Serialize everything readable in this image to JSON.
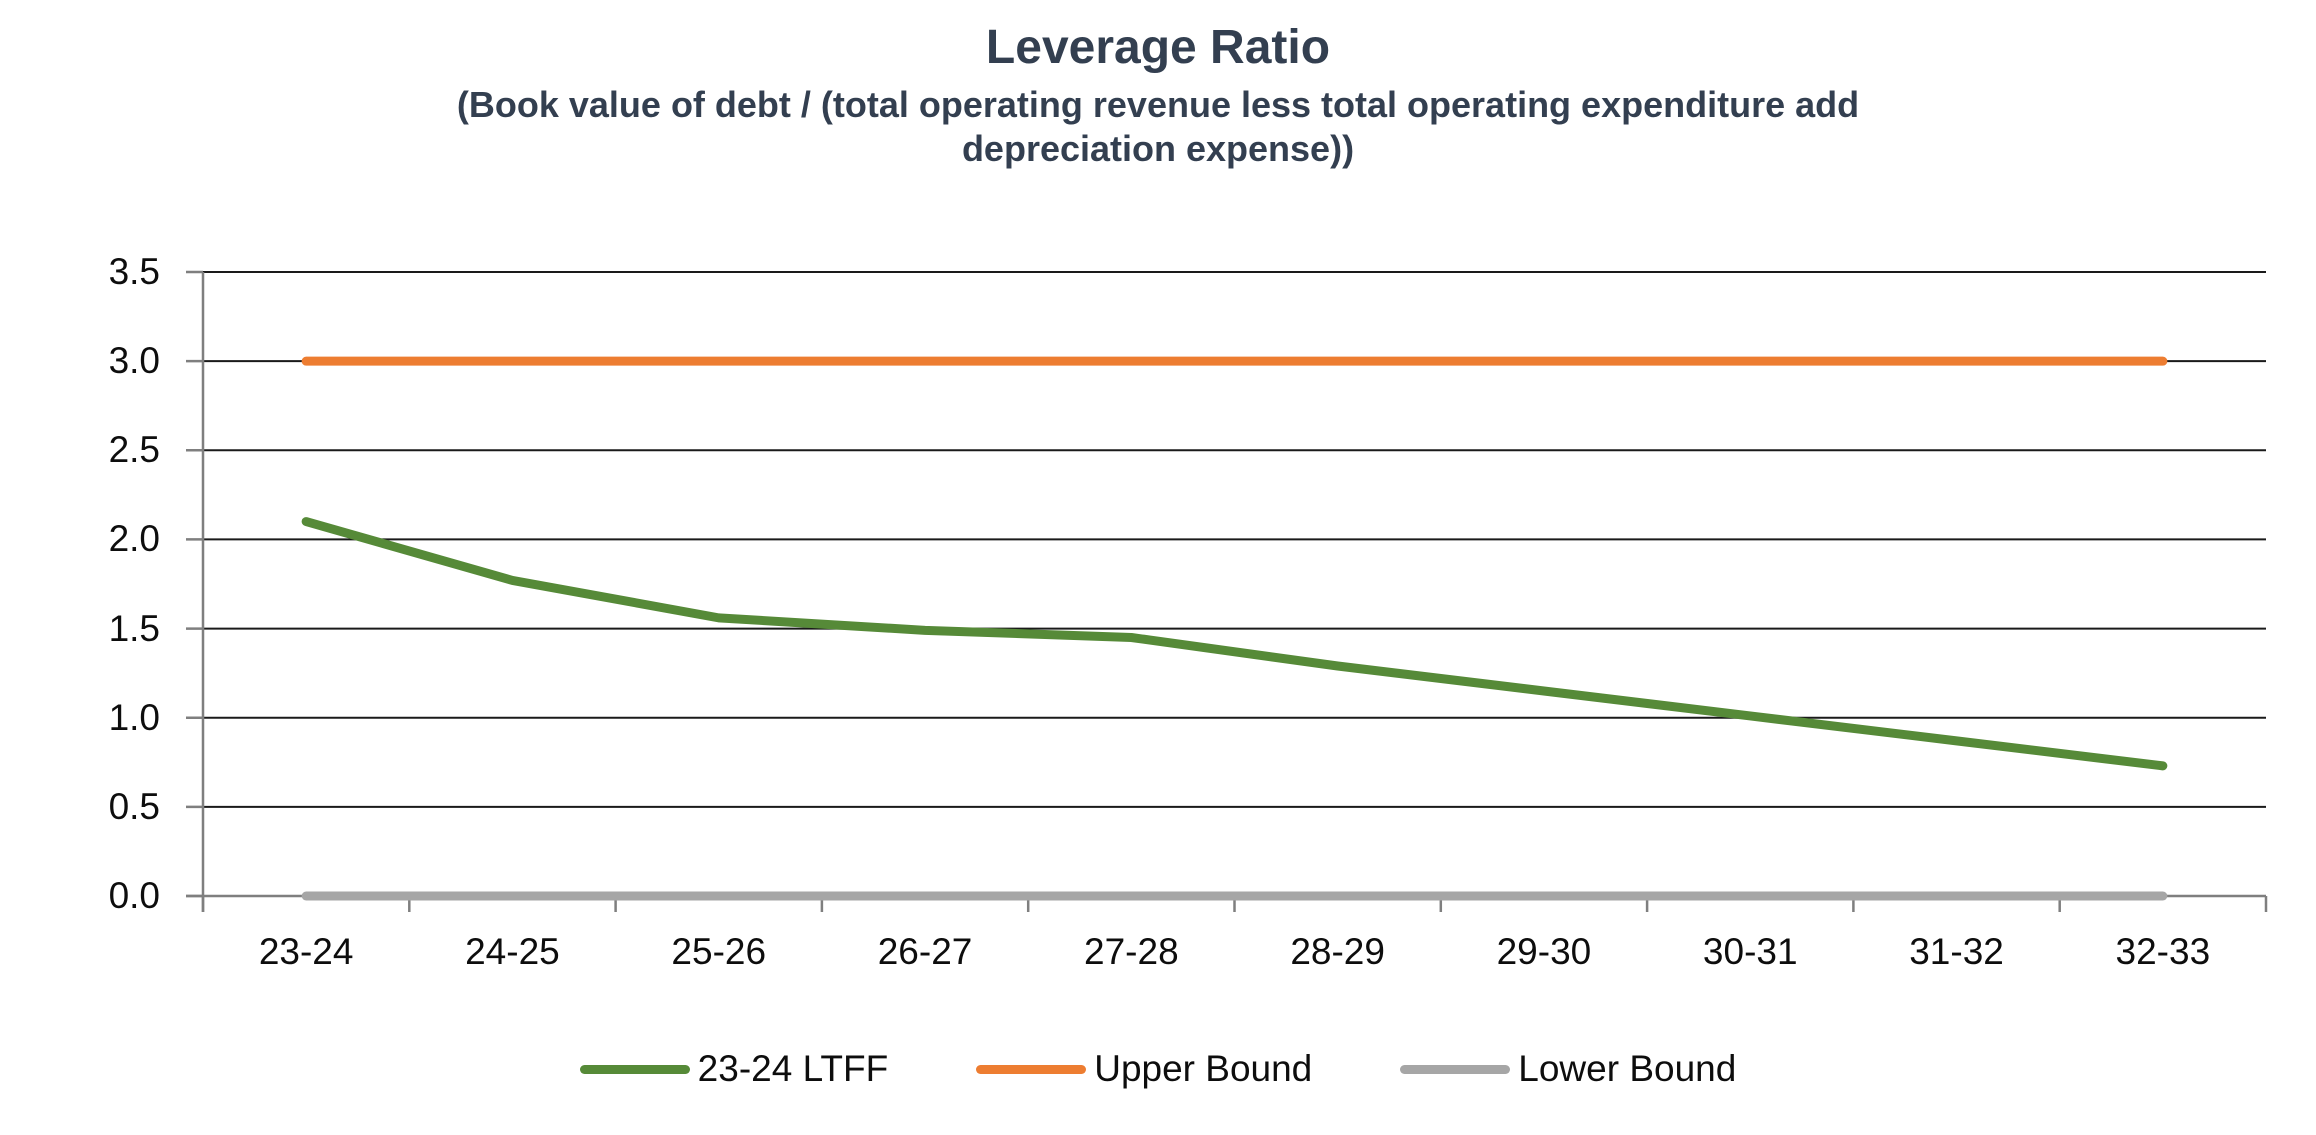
{
  "chart_data": {
    "type": "line",
    "title": "Leverage Ratio",
    "subtitle": "(Book value of debt / (total operating revenue less total operating expenditure add depreciation expense))",
    "subtitle_lines": [
      "(Book value of debt / (total operating revenue less total operating expenditure add",
      "depreciation expense))"
    ],
    "categories": [
      "23-24",
      "24-25",
      "25-26",
      "26-27",
      "27-28",
      "28-29",
      "29-30",
      "30-31",
      "31-32",
      "32-33"
    ],
    "series": [
      {
        "name": "23-24 LTFF",
        "color": "#568A38",
        "values": [
          2.1,
          1.77,
          1.56,
          1.49,
          1.45,
          1.29,
          1.15,
          1.01,
          0.87,
          0.73
        ]
      },
      {
        "name": "Upper Bound",
        "color": "#ED7D31",
        "values": [
          3.0,
          3.0,
          3.0,
          3.0,
          3.0,
          3.0,
          3.0,
          3.0,
          3.0,
          3.0
        ]
      },
      {
        "name": "Lower Bound",
        "color": "#A6A6A6",
        "values": [
          0.0,
          0.0,
          0.0,
          0.0,
          0.0,
          0.0,
          0.0,
          0.0,
          0.0,
          0.0
        ]
      }
    ],
    "y_axis": {
      "min": 0,
      "max": 3.5,
      "step": 0.5,
      "tick_labels": [
        "0.0",
        "0.5",
        "1.0",
        "1.5",
        "2.0",
        "2.5",
        "3.0",
        "3.5"
      ]
    },
    "x_axis": {
      "label": ""
    },
    "legend_position": "bottom",
    "grid": true,
    "colors": {
      "title_text": "#333F50",
      "axis_line": "#7F7F7F",
      "gridline": "#1A1A1A",
      "tick_text": "#0d0d0d"
    }
  }
}
